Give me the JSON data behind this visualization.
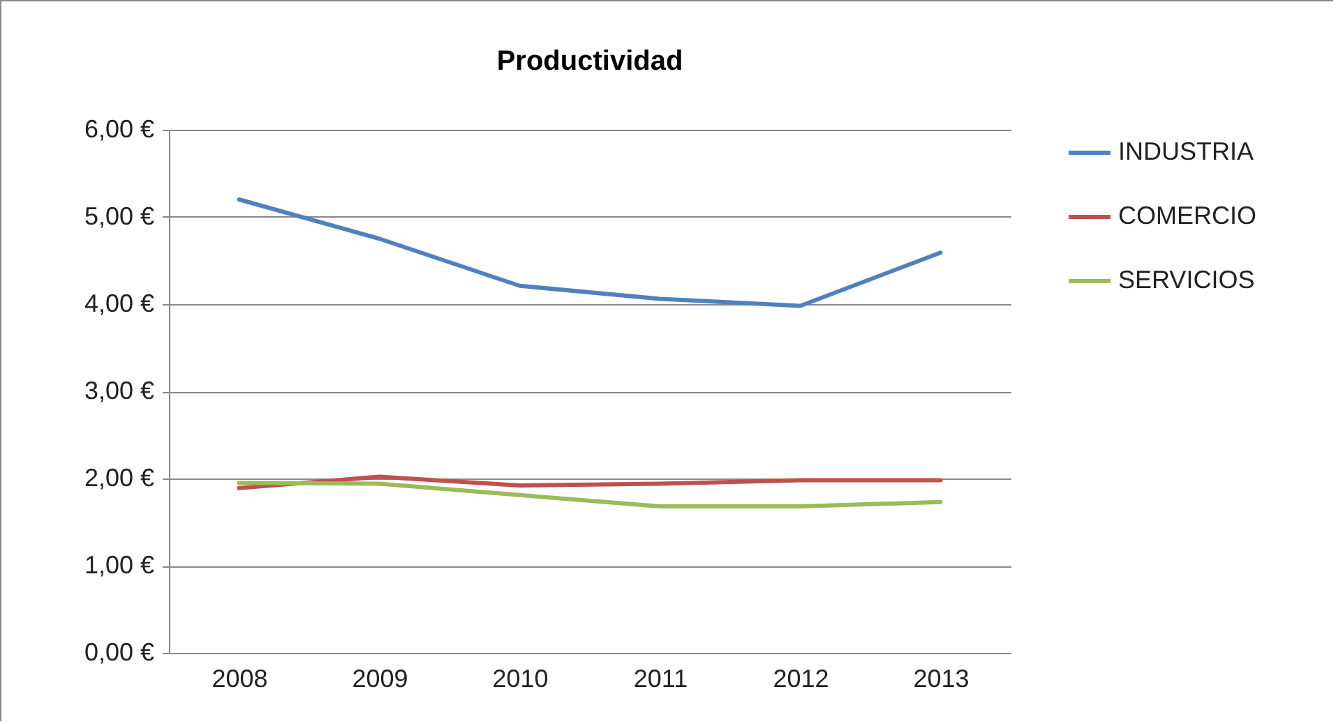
{
  "chart_data": {
    "type": "line",
    "title": "Productividad",
    "categories": [
      "2008",
      "2009",
      "2010",
      "2011",
      "2012",
      "2013"
    ],
    "series": [
      {
        "name": "INDUSTRIA",
        "color": "#4f81bd",
        "values": [
          5.2,
          4.75,
          4.21,
          4.06,
          3.98,
          4.59
        ]
      },
      {
        "name": "COMERCIO",
        "color": "#c0504d",
        "values": [
          1.89,
          2.02,
          1.92,
          1.94,
          1.98,
          1.98
        ]
      },
      {
        "name": "SERVICIOS",
        "color": "#9bbb59",
        "values": [
          1.95,
          1.94,
          1.81,
          1.68,
          1.68,
          1.73
        ]
      }
    ],
    "ylim": [
      0,
      6
    ],
    "yticks": [
      {
        "value": 0,
        "label": "0,00 €"
      },
      {
        "value": 1,
        "label": "1,00 €"
      },
      {
        "value": 2,
        "label": "2,00 €"
      },
      {
        "value": 3,
        "label": "3,00 €"
      },
      {
        "value": 4,
        "label": "4,00 €"
      },
      {
        "value": 5,
        "label": "5,00 €"
      },
      {
        "value": 6,
        "label": "6,00 €"
      }
    ],
    "grid": "y",
    "legend": "right",
    "marker": "none",
    "line_style": "solid"
  }
}
